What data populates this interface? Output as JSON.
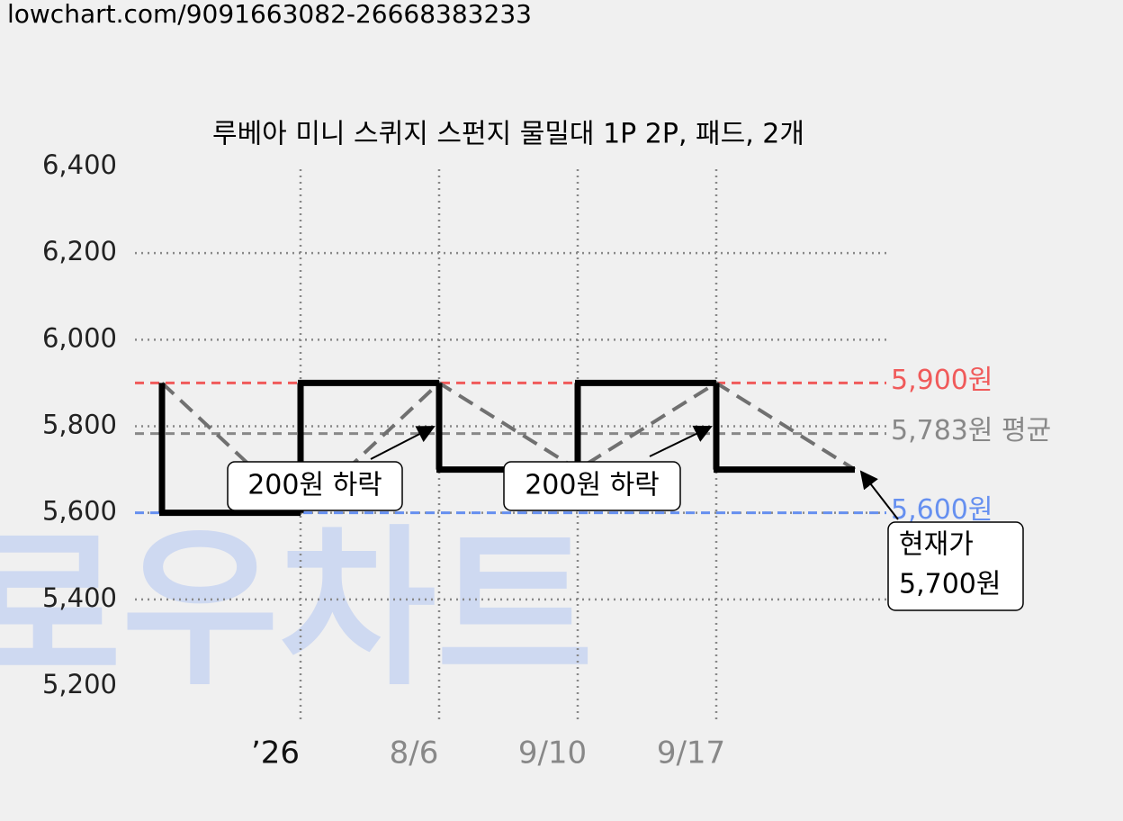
{
  "header": "lowchart.com/9091663082-26668383233",
  "watermark": "로우차트",
  "chart_data": {
    "type": "step",
    "title": "루베아 미니 스퀴지 스펀지 물밀대 1P 2P, 패드, 2개",
    "categories": [
      null,
      "’26",
      "8/6",
      "9/10",
      "9/17",
      null
    ],
    "series": [
      {
        "values": [
          5900,
          5600,
          5900,
          5700,
          5900,
          5700
        ],
        "color": "#000000",
        "trend_color": "#707070"
      }
    ],
    "ylim": [
      5200,
      6400
    ],
    "yticks": [
      {
        "value": 5200,
        "label": "5,200"
      },
      {
        "value": 5400,
        "label": "5,400"
      },
      {
        "value": 5600,
        "label": "5,600"
      },
      {
        "value": 5800,
        "label": "5,800"
      },
      {
        "value": 6000,
        "label": "6,000"
      },
      {
        "value": 6200,
        "label": "6,200"
      },
      {
        "value": 6400,
        "label": "6,400"
      }
    ],
    "grid": true,
    "reference_lines": [
      {
        "value": 5900,
        "label": "5,900원",
        "color": "#f05a5a"
      },
      {
        "value": 5783,
        "label": "5,783원 평균",
        "color": "#888888"
      },
      {
        "value": 5600,
        "label": "5,600원",
        "color": "#6690f0"
      }
    ],
    "annotations": [
      {
        "text": "200원 하락"
      },
      {
        "text": "200원 하락"
      },
      {
        "lines": [
          "현재가",
          "5,700원"
        ]
      }
    ]
  }
}
